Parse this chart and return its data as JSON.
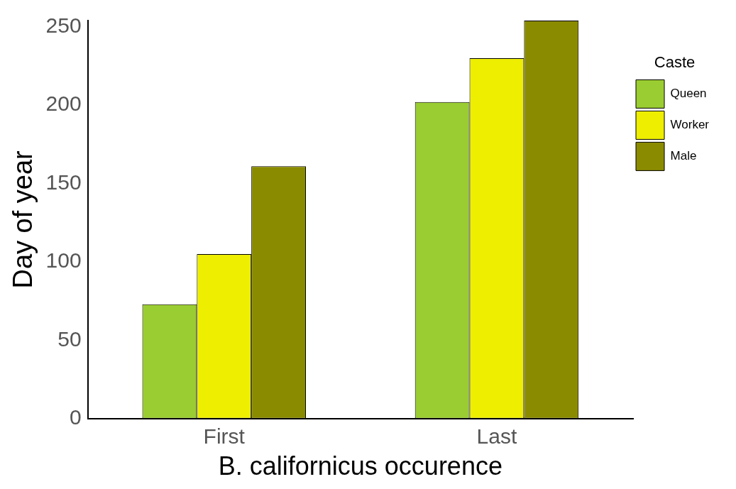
{
  "chart_data": {
    "type": "bar",
    "xlabel": "B. californicus occurence",
    "ylabel": "Day of year",
    "legend_title": "Caste",
    "legend": "right",
    "categories": [
      "First",
      "Last"
    ],
    "ylim": [
      0,
      254
    ],
    "yticks": [
      0,
      50,
      100,
      150,
      200,
      250
    ],
    "grid": false,
    "series": [
      {
        "name": "Queen",
        "color": "#9acd32",
        "values": [
          73,
          202
        ]
      },
      {
        "name": "Worker",
        "color": "#eeee00",
        "values": [
          105,
          230
        ]
      },
      {
        "name": "Male",
        "color": "#8b8b00",
        "values": [
          161,
          254
        ]
      }
    ]
  }
}
